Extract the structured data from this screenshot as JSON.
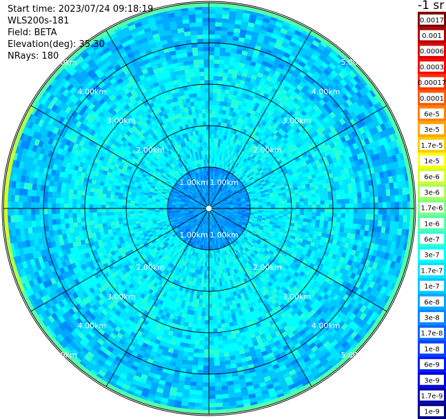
{
  "header": {
    "start_time": "Start time: 2023/07/24 09:18:19",
    "device": "WLS200s-181",
    "field": "Field: BETA",
    "elevation": "Elevation(deg): 35.30",
    "nrays": "NRays: 180"
  },
  "units_label": "-1 sr",
  "range_rings": {
    "max_range_km": 5.0,
    "step_km": 1.0,
    "labels": [
      "1.00km",
      "2.00km",
      "3.00km",
      "4.00km",
      "5.00km"
    ]
  },
  "spokes_deg": [
    0,
    30,
    60,
    90,
    120,
    150,
    180,
    210,
    240,
    270,
    300,
    330
  ],
  "colorbar": [
    {
      "label": "0.0017",
      "color": "#800000"
    },
    {
      "label": "0.001",
      "color": "#b30000"
    },
    {
      "label": "0.0006",
      "color": "#e00000"
    },
    {
      "label": "0.0003",
      "color": "#ff0000"
    },
    {
      "label": "0.00017",
      "color": "#ff3000"
    },
    {
      "label": "0.0001",
      "color": "#ff5a00"
    },
    {
      "label": "6e-5",
      "color": "#ff8000"
    },
    {
      "label": "3e-5",
      "color": "#ffa500"
    },
    {
      "label": "1.7e-5",
      "color": "#ffcc00"
    },
    {
      "label": "1e-5",
      "color": "#ffff00"
    },
    {
      "label": "6e-6",
      "color": "#d4ff2a"
    },
    {
      "label": "3e-6",
      "color": "#aaff55"
    },
    {
      "label": "1.7e-6",
      "color": "#80ff80"
    },
    {
      "label": "1e-6",
      "color": "#55ffaa"
    },
    {
      "label": "6e-7",
      "color": "#2affd4"
    },
    {
      "label": "3e-7",
      "color": "#00ffff"
    },
    {
      "label": "1.7e-7",
      "color": "#00e5ff"
    },
    {
      "label": "1e-7",
      "color": "#00c8ff"
    },
    {
      "label": "6e-8",
      "color": "#00a8ff"
    },
    {
      "label": "3e-8",
      "color": "#0088ff"
    },
    {
      "label": "1.7e-8",
      "color": "#0066ff"
    },
    {
      "label": "1e-8",
      "color": "#0040ff"
    },
    {
      "label": "6e-9",
      "color": "#0018ff"
    },
    {
      "label": "3e-9",
      "color": "#0000e0"
    },
    {
      "label": "1.7e-9",
      "color": "#0000b0"
    },
    {
      "label": "1e-9",
      "color": "#000080"
    }
  ]
}
